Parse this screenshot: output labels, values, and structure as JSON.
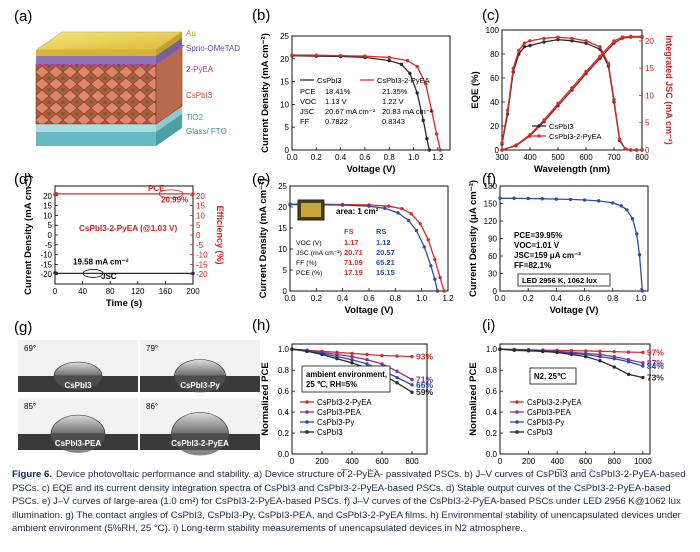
{
  "panel_labels": [
    "(a)",
    "(b)",
    "(c)",
    "(d)",
    "(e)",
    "(f)",
    "(g)",
    "(h)",
    "(i)"
  ],
  "colors": {
    "red": "#d62d2d",
    "black": "#2b2b2b",
    "blue": "#2c4ea3",
    "purple": "#8b2f9d",
    "darkred": "#a11616"
  },
  "panel_a": {
    "layers": [
      "Au",
      "Sprio-OMeTAD",
      "2-PyEA",
      "CsPbI3",
      "TiO2",
      "Glass/ FTO"
    ]
  },
  "panel_g": {
    "angles": [
      "69°",
      "79°",
      "85°",
      "86°"
    ],
    "films": [
      "CsPbI3",
      "CsPbI3-Py",
      "CsPbI3-PEA",
      "CsPbI3-2-PyEA"
    ]
  },
  "caption": {
    "figure_label": "Figure 6.",
    "text": "Device photovoltaic performance and stability. a) Device structure of 2-PyEA- passivated PSCs. b) J–V curves of CsPbI3 and CsPbI3-2-PyEA-based PSCs. c) EQE and its current density integration spectra of CsPbI3 and CsPbI3-2-PyEA-based PSCs. d) Stable output curves of the CsPbI3-2-PyEA-based PSCs. e) J–V curves of large-area (1.0 cm²) for CsPbI3-2-PyEA-based PSCs. f) J–V curves of the CsPbI3-2-PyEA-based PSCs under LED 2956 K@1062 lux illumination. g) The contact angles of CsPbI3, CsPbI3-Py, CsPbI3-PEA, and CsPbI3-2-PyEA films. h) Environmental stability of unencapsulated devices under ambient environment (5%RH, 25 °C). i) Long-term stability measurements of unencapsulated devices in N2 atmosphere."
  },
  "chart_data": [
    {
      "id": "b",
      "type": "line",
      "xlabel": "Voltage (V)",
      "ylabel": "Current Density (mA cm⁻²)",
      "xlim": [
        0,
        1.3
      ],
      "ylim": [
        0,
        25
      ],
      "xticks": [
        "0.0",
        "0.2",
        "0.4",
        "0.6",
        "0.8",
        "1.0",
        "1.2"
      ],
      "yticks": [
        "0",
        "5",
        "10",
        "15",
        "20",
        "25"
      ],
      "series": [
        {
          "name": "CsPbI3",
          "color": "#2b2b2b",
          "x": [
            0,
            0.2,
            0.4,
            0.6,
            0.8,
            0.9,
            0.97,
            1.03,
            1.08,
            1.11,
            1.13
          ],
          "y": [
            20.67,
            20.6,
            20.5,
            20.3,
            19.6,
            18.8,
            16.8,
            12.5,
            6.5,
            2.5,
            0
          ]
        },
        {
          "name": "CsPbI3-2-PyEA",
          "color": "#d62d2d",
          "x": [
            0,
            0.2,
            0.4,
            0.6,
            0.8,
            0.95,
            1.03,
            1.1,
            1.15,
            1.19,
            1.22
          ],
          "y": [
            20.83,
            20.8,
            20.7,
            20.6,
            20.3,
            19.6,
            18.3,
            14.5,
            8.5,
            3.5,
            0
          ]
        }
      ],
      "table": {
        "header": [
          "",
          "CsPbI3",
          "CsPbI3-2-PyEA"
        ],
        "rows": [
          [
            "PCE",
            "18.41%",
            "21.35%"
          ],
          [
            "VOC",
            "1.13 V",
            "1.22 V"
          ],
          [
            "JSC",
            "20.67 mA cm⁻²",
            "20.83 mA cm⁻²"
          ],
          [
            "FF",
            "0.7822",
            "0.8343"
          ]
        ]
      }
    },
    {
      "id": "c",
      "type": "line",
      "xlabel": "Wavelength (nm)",
      "ylabel": "EQE (%)",
      "ylabel2": "Integrated JSC (mA cm⁻²)",
      "xlim": [
        300,
        800
      ],
      "ylim": [
        0,
        100
      ],
      "ylim2": [
        0,
        22
      ],
      "xticks": [
        "300",
        "400",
        "500",
        "600",
        "700",
        "800"
      ],
      "yticks": [
        "0",
        "20",
        "40",
        "60",
        "80",
        "100"
      ],
      "yticks2": [
        "0",
        "5",
        "10",
        "15",
        "20"
      ],
      "series": [
        {
          "name": "CsPbI3",
          "color": "#2b2b2b",
          "x": [
            300,
            320,
            340,
            360,
            380,
            400,
            450,
            500,
            550,
            600,
            650,
            680,
            700,
            720,
            740,
            760,
            780,
            800
          ],
          "y": [
            5,
            30,
            65,
            80,
            86,
            87,
            90,
            92,
            91,
            89,
            84,
            70,
            40,
            8,
            1,
            0,
            0,
            0
          ]
        },
        {
          "name": "CsPbI3-2-PyEA",
          "color": "#d62d2d",
          "x": [
            300,
            320,
            340,
            360,
            380,
            400,
            450,
            500,
            550,
            600,
            650,
            680,
            700,
            720,
            740,
            760,
            780,
            800
          ],
          "y": [
            6,
            33,
            68,
            83,
            89,
            91,
            93,
            94,
            93,
            91,
            86,
            72,
            42,
            9,
            1,
            0,
            0,
            0
          ]
        },
        {
          "name": "CsPbI3 integ",
          "axis": 2,
          "color": "#a11616",
          "x": [
            300,
            350,
            400,
            450,
            500,
            550,
            600,
            650,
            700,
            730,
            760,
            800
          ],
          "y": [
            0,
            0.8,
            2.6,
            5.2,
            8.1,
            11.0,
            14.0,
            16.8,
            19.6,
            20.5,
            20.7,
            20.7
          ]
        },
        {
          "name": "CsPbI3-2-PyEA integ",
          "axis": 2,
          "color": "#d62d2d",
          "x": [
            300,
            350,
            400,
            450,
            500,
            550,
            600,
            650,
            700,
            730,
            760,
            800
          ],
          "y": [
            0,
            0.9,
            2.8,
            5.5,
            8.5,
            11.4,
            14.4,
            17.2,
            20.0,
            20.7,
            20.83,
            20.83
          ]
        }
      ]
    },
    {
      "id": "d",
      "type": "line",
      "xlabel": "Time (s)",
      "ylabel": "Current Density (mA cm⁻²)",
      "ylabel2": "Efficiency (%)",
      "xlim": [
        0,
        200
      ],
      "ylim": [
        -25,
        25
      ],
      "ylim2": [
        -25,
        25
      ],
      "xticks": [
        "0",
        "40",
        "80",
        "120",
        "160",
        "200"
      ],
      "yticks": [
        "-20",
        "-15",
        "-10",
        "-5",
        "0",
        "5",
        "10",
        "15",
        "20"
      ],
      "yticks2": [
        "-20",
        "-15",
        "-10",
        "-5",
        "0",
        "5",
        "10",
        "15",
        "20"
      ],
      "series": [
        {
          "name": "PCE",
          "color": "#d62d2d",
          "x": [
            0,
            2,
            200
          ],
          "y": [
            20.6,
            20.99,
            20.99
          ]
        },
        {
          "name": "JSC",
          "color": "#2b2b2b",
          "x": [
            0,
            2,
            200
          ],
          "y": [
            -19.3,
            -19.58,
            -19.58
          ]
        }
      ],
      "annotations": [
        "PCE",
        "20.99%",
        "CsPbI3-2-PyEA (@1.03 V)",
        "19.58 mA cm⁻²",
        "JSC"
      ]
    },
    {
      "id": "e",
      "type": "line",
      "xlabel": "Voltage (V)",
      "ylabel": "Current Density (mA cm⁻²)",
      "xlim": [
        0,
        1.2
      ],
      "ylim": [
        0,
        25
      ],
      "xticks": [
        "0.0",
        "0.2",
        "0.4",
        "0.6",
        "0.8",
        "1.0",
        "1.2"
      ],
      "yticks": [
        "0",
        "5",
        "10",
        "15",
        "20",
        "25"
      ],
      "series": [
        {
          "name": "FS",
          "color": "#d62d2d",
          "x": [
            0,
            0.2,
            0.4,
            0.6,
            0.75,
            0.85,
            0.92,
            0.99,
            1.05,
            1.1,
            1.14,
            1.17
          ],
          "y": [
            20.71,
            20.7,
            20.6,
            20.5,
            20.2,
            19.6,
            18.4,
            16.0,
            12.2,
            7.5,
            3.2,
            0
          ]
        },
        {
          "name": "RS",
          "color": "#2c4ea3",
          "x": [
            0,
            0.2,
            0.4,
            0.6,
            0.72,
            0.82,
            0.9,
            0.96,
            1.02,
            1.07,
            1.1,
            1.12
          ],
          "y": [
            20.57,
            20.55,
            20.45,
            20.2,
            19.7,
            18.6,
            16.8,
            14.4,
            10.5,
            6.0,
            2.8,
            0
          ]
        }
      ],
      "inset_label": "area: 1 cm²",
      "table": {
        "header": [
          "",
          "FS",
          "RS"
        ],
        "rows": [
          [
            "VOC (V)",
            "1.17",
            "1.12"
          ],
          [
            "JSC (mA cm⁻²)",
            "20.71",
            "20.57"
          ],
          [
            "FF (%)",
            "71.09",
            "65.21"
          ],
          [
            "PCE (%)",
            "17.19",
            "15.15"
          ]
        ]
      }
    },
    {
      "id": "f",
      "type": "line",
      "xlabel": "Voltage (V)",
      "ylabel": "Current Density (μA cm⁻²)",
      "xlim": [
        0,
        1.05
      ],
      "ylim": [
        0,
        180
      ],
      "xticks": [
        "0.0",
        "0.2",
        "0.4",
        "0.6",
        "0.8",
        "1.0"
      ],
      "yticks": [
        "0",
        "30",
        "60",
        "90",
        "120",
        "150",
        "180"
      ],
      "series": [
        {
          "name": "CsPbI3-2-PyEA",
          "color": "#2c4ea3",
          "x": [
            0,
            0.1,
            0.2,
            0.3,
            0.4,
            0.5,
            0.6,
            0.7,
            0.8,
            0.86,
            0.9,
            0.94,
            0.97,
            0.99,
            1.01
          ],
          "y": [
            159,
            159,
            158.6,
            158.2,
            157.6,
            157,
            156,
            154.5,
            151,
            146,
            139,
            124,
            98,
            62,
            0
          ]
        }
      ],
      "notes": [
        "PCE=39.95%",
        "VOC=1.01 V",
        "JSC=159 μA cm⁻²",
        "FF=82.1%"
      ],
      "box_label": "LED   2956 K, 1062 lux"
    },
    {
      "id": "h",
      "type": "line",
      "xlabel": "Time (h)",
      "ylabel": "Normalized PCE",
      "xlim": [
        0,
        900
      ],
      "ylim": [
        0.0,
        1.05
      ],
      "xticks": [
        "0",
        "200",
        "400",
        "600",
        "800"
      ],
      "yticks": [
        "0.0",
        "0.2",
        "0.4",
        "0.6",
        "0.8",
        "1.0"
      ],
      "series": [
        {
          "name": "CsPbI3-2-PyEA",
          "color": "#d62d2d",
          "x": [
            0,
            100,
            200,
            300,
            400,
            500,
            600,
            700,
            800
          ],
          "y": [
            1.0,
            0.99,
            0.98,
            0.97,
            0.96,
            0.95,
            0.94,
            0.935,
            0.93
          ],
          "end_label": "93%"
        },
        {
          "name": "CsPbI3-PEA",
          "color": "#8b2f9d",
          "x": [
            0,
            100,
            200,
            300,
            400,
            500,
            600,
            700,
            800
          ],
          "y": [
            1.0,
            0.99,
            0.97,
            0.95,
            0.93,
            0.9,
            0.86,
            0.79,
            0.71
          ],
          "end_label": "71%"
        },
        {
          "name": "CsPbI3-Py",
          "color": "#2c4ea3",
          "x": [
            0,
            100,
            200,
            300,
            400,
            500,
            600,
            700,
            800
          ],
          "y": [
            1.0,
            0.985,
            0.96,
            0.93,
            0.9,
            0.86,
            0.8,
            0.73,
            0.66
          ],
          "end_label": "66%"
        },
        {
          "name": "CsPbI3",
          "color": "#2b2b2b",
          "x": [
            0,
            100,
            200,
            300,
            400,
            500,
            600,
            700,
            800
          ],
          "y": [
            1.0,
            0.98,
            0.95,
            0.91,
            0.87,
            0.82,
            0.76,
            0.68,
            0.59
          ],
          "end_label": "59%"
        }
      ],
      "condition": [
        "ambient environment,",
        "25 ℃, RH=5%"
      ]
    },
    {
      "id": "i",
      "type": "line",
      "xlabel": "Time (h)",
      "ylabel": "Normalized PCE",
      "xlim": [
        0,
        1050
      ],
      "ylim": [
        0.0,
        1.05
      ],
      "xticks": [
        "0",
        "200",
        "400",
        "600",
        "800",
        "1000"
      ],
      "yticks": [
        "0.0",
        "0.2",
        "0.4",
        "0.6",
        "0.8",
        "1.0"
      ],
      "series": [
        {
          "name": "CsPbI3-2-PyEA",
          "color": "#d62d2d",
          "x": [
            0,
            100,
            200,
            300,
            400,
            500,
            600,
            700,
            800,
            900,
            1000
          ],
          "y": [
            1.0,
            0.998,
            0.995,
            0.992,
            0.99,
            0.987,
            0.984,
            0.98,
            0.977,
            0.973,
            0.97
          ],
          "end_label": "97%"
        },
        {
          "name": "CsPbI3-PEA",
          "color": "#8b2f9d",
          "x": [
            0,
            100,
            200,
            300,
            400,
            500,
            600,
            700,
            800,
            900,
            1000
          ],
          "y": [
            1.0,
            0.995,
            0.99,
            0.985,
            0.98,
            0.97,
            0.96,
            0.95,
            0.93,
            0.9,
            0.87
          ],
          "end_label": "87%"
        },
        {
          "name": "CsPbI3-Py",
          "color": "#2c4ea3",
          "x": [
            0,
            100,
            200,
            300,
            400,
            500,
            600,
            700,
            800,
            900,
            1000
          ],
          "y": [
            1.0,
            0.995,
            0.99,
            0.98,
            0.97,
            0.96,
            0.95,
            0.93,
            0.91,
            0.88,
            0.84
          ],
          "end_label": "84%"
        },
        {
          "name": "CsPbI3",
          "color": "#2b2b2b",
          "x": [
            0,
            100,
            200,
            300,
            400,
            500,
            600,
            700,
            800,
            900,
            1000
          ],
          "y": [
            1.0,
            0.99,
            0.985,
            0.98,
            0.97,
            0.95,
            0.93,
            0.89,
            0.83,
            0.76,
            0.73
          ],
          "end_label": "73%"
        }
      ],
      "condition": [
        "N2, 25℃"
      ]
    }
  ]
}
